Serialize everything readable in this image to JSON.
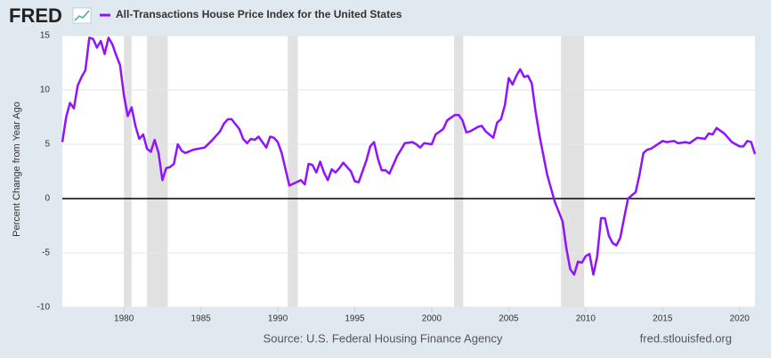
{
  "chart_data": {
    "type": "line",
    "logo": "FRED",
    "title": "All-Transactions House Price Index for the United States",
    "ylabel": "Percent Change from Year Ago",
    "source": "Source: U.S. Federal Housing Finance Agency",
    "site": "fred.stlouisfed.org",
    "xlim": [
      1976,
      2021
    ],
    "xticks": [
      1980,
      1985,
      1990,
      1995,
      2000,
      2005,
      2010,
      2015,
      2020
    ],
    "ylim": [
      -10,
      15
    ],
    "yticks": [
      -10,
      -5,
      0,
      5,
      10,
      15
    ],
    "grid": true,
    "shaded_periods": [
      [
        1980.0,
        1980.5
      ],
      [
        1981.5,
        1982.85
      ],
      [
        1990.65,
        1991.3
      ],
      [
        2001.45,
        2002.05
      ],
      [
        2008.4,
        2009.9
      ]
    ],
    "series": [
      {
        "name": "All-Transactions House Price Index for the United States",
        "color": "#9013fe",
        "x": [
          1976.0,
          1976.25,
          1976.5,
          1976.75,
          1977.0,
          1977.25,
          1977.5,
          1977.75,
          1978.0,
          1978.25,
          1978.5,
          1978.75,
          1979.0,
          1979.25,
          1979.5,
          1979.75,
          1980.0,
          1980.25,
          1980.5,
          1980.75,
          1981.0,
          1981.25,
          1981.5,
          1981.75,
          1982.0,
          1982.25,
          1982.5,
          1982.75,
          1983.0,
          1983.25,
          1983.5,
          1983.75,
          1984.0,
          1984.5,
          1985.25,
          1985.75,
          1986.25,
          1986.5,
          1986.75,
          1987.0,
          1987.5,
          1987.75,
          1988.0,
          1988.25,
          1988.5,
          1988.75,
          1989.25,
          1989.5,
          1989.75,
          1990.0,
          1990.25,
          1990.75,
          1991.5,
          1991.75,
          1992.0,
          1992.25,
          1992.5,
          1992.75,
          1993.0,
          1993.25,
          1993.5,
          1993.75,
          1994.0,
          1994.25,
          1994.75,
          1995.0,
          1995.25,
          1995.75,
          1996.0,
          1996.25,
          1996.5,
          1996.75,
          1997.0,
          1997.25,
          1997.75,
          1998.0,
          1998.25,
          1998.75,
          1999.0,
          1999.25,
          1999.5,
          2000.0,
          2000.25,
          2000.75,
          2001.0,
          2001.5,
          2001.75,
          2002.0,
          2002.25,
          2002.5,
          2003.0,
          2003.25,
          2003.5,
          2004.0,
          2004.25,
          2004.5,
          2004.75,
          2005.0,
          2005.25,
          2005.5,
          2005.75,
          2006.0,
          2006.25,
          2006.5,
          2006.75,
          2007.0,
          2007.25,
          2007.5,
          2008.0,
          2008.5,
          2008.75,
          2009.0,
          2009.25,
          2009.5,
          2009.75,
          2010.0,
          2010.25,
          2010.5,
          2010.75,
          2011.0,
          2011.25,
          2011.5,
          2011.75,
          2012.0,
          2012.25,
          2012.5,
          2012.75,
          2013.25,
          2013.5,
          2013.75,
          2014.0,
          2014.25,
          2015.0,
          2015.25,
          2015.75,
          2016.0,
          2016.5,
          2016.75,
          2017.25,
          2017.75,
          2018.0,
          2018.25,
          2018.5,
          2019.0,
          2019.5,
          2020.0,
          2020.25,
          2020.5,
          2020.75,
          2021.0
        ],
        "values": [
          5.2,
          7.5,
          8.8,
          8.3,
          10.4,
          11.2,
          11.8,
          14.8,
          14.7,
          13.9,
          14.5,
          13.3,
          14.8,
          14.2,
          13.2,
          12.3,
          9.5,
          7.6,
          8.4,
          6.7,
          5.5,
          5.9,
          4.6,
          4.3,
          5.4,
          4.2,
          1.7,
          2.8,
          2.9,
          3.2,
          5.0,
          4.4,
          4.2,
          4.5,
          4.7,
          5.4,
          6.2,
          6.9,
          7.3,
          7.3,
          6.4,
          5.5,
          5.1,
          5.5,
          5.4,
          5.7,
          4.7,
          5.7,
          5.6,
          5.2,
          4.2,
          1.2,
          1.7,
          1.3,
          3.2,
          3.1,
          2.4,
          3.4,
          2.4,
          1.7,
          2.7,
          2.4,
          2.8,
          3.3,
          2.5,
          1.6,
          1.5,
          3.5,
          4.8,
          5.2,
          3.7,
          2.6,
          2.6,
          2.3,
          3.9,
          4.5,
          5.1,
          5.2,
          5.0,
          4.7,
          5.1,
          5.0,
          5.9,
          6.4,
          7.2,
          7.7,
          7.7,
          7.2,
          6.1,
          6.2,
          6.6,
          6.7,
          6.2,
          5.6,
          7.0,
          7.3,
          8.6,
          11.1,
          10.5,
          11.3,
          11.9,
          11.2,
          11.3,
          10.6,
          8.0,
          5.8,
          4.0,
          2.2,
          -0.3,
          -2.1,
          -4.6,
          -6.5,
          -7.0,
          -5.8,
          -5.9,
          -5.3,
          -5.1,
          -7.0,
          -5.3,
          -1.8,
          -1.8,
          -3.4,
          -4.1,
          -4.3,
          -3.6,
          -1.8,
          0.0,
          0.6,
          2.2,
          4.2,
          4.5,
          4.6,
          5.3,
          5.2,
          5.3,
          5.1,
          5.2,
          5.1,
          5.6,
          5.5,
          6.0,
          5.9,
          6.5,
          6.0,
          5.2,
          4.8,
          4.8,
          5.3,
          5.2,
          4.1
        ]
      }
    ]
  }
}
